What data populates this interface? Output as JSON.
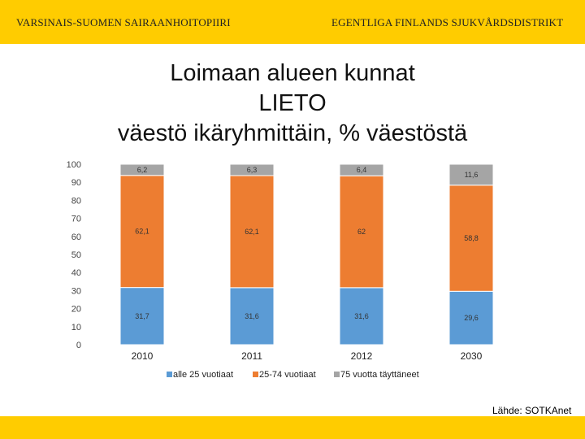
{
  "header": {
    "org_fi": "VARSINAIS-SUOMEN SAIRAANHOITOPIIRI",
    "org_sv": "EGENTLIGA FINLANDS SJUKVÅRDSDISTRIKT",
    "brand_color": "#ffcc00"
  },
  "footer": {
    "source": "Lähde: SOTKAnet"
  },
  "chart_data": {
    "type": "bar",
    "stacked": true,
    "title": [
      "Loimaan alueen kunnat",
      "LIETO",
      "väestö ikäryhmittäin, % väestöstä"
    ],
    "categories": [
      "2010",
      "2011",
      "2012",
      "2030"
    ],
    "series": [
      {
        "name": "alle 25 vuotiaat",
        "values": [
          31.7,
          31.6,
          31.6,
          29.6
        ],
        "labels": [
          "31,7",
          "31,6",
          "31,6",
          "29,6"
        ],
        "color": "#5b9bd5"
      },
      {
        "name": "25-74 vuotiaat",
        "values": [
          62.1,
          62.1,
          62,
          58.8
        ],
        "labels": [
          "62,1",
          "62,1",
          "62",
          "58,8"
        ],
        "color": "#ed7d31"
      },
      {
        "name": "75 vuotta täyttäneet",
        "values": [
          6.2,
          6.3,
          6.4,
          11.6
        ],
        "labels": [
          "6,2",
          "6,3",
          "6,4",
          "11,6"
        ],
        "color": "#a5a5a5"
      }
    ],
    "yticks": [
      "0",
      "10",
      "20",
      "30",
      "40",
      "50",
      "60",
      "70",
      "80",
      "90",
      "100"
    ],
    "ylim": [
      0,
      100
    ],
    "legend": "bottom"
  }
}
